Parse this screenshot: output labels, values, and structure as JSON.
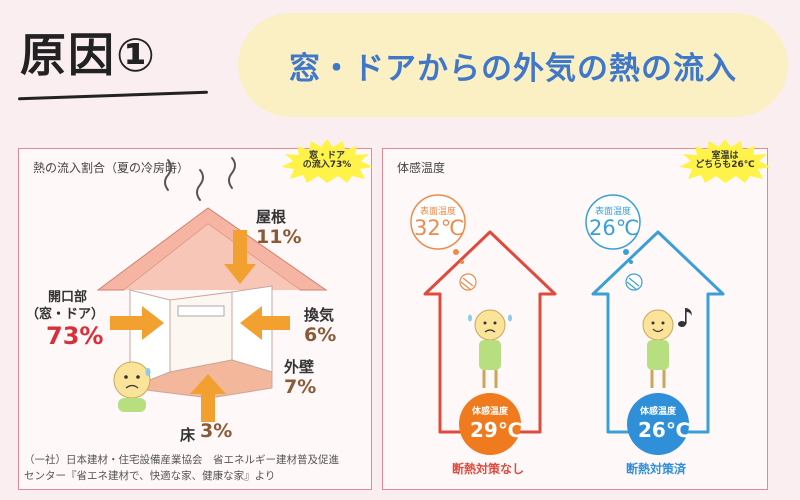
{
  "header": {
    "cause_label": "原因①",
    "title": "窓・ドアからの外気の熱の流入"
  },
  "left_panel": {
    "caption": "熱の流入割合（夏の冷房時）",
    "burst_line1": "窓・ドア",
    "burst_line2": "の流入73%",
    "roof_label": "屋根",
    "roof_pct": "11%",
    "opening_label_line1": "開口部",
    "opening_label_line2": "（窓・ドア）",
    "opening_pct": "73%",
    "vent_label": "換気",
    "vent_pct": "6%",
    "wall_label": "外壁",
    "wall_pct": "7%",
    "floor_label": "床",
    "floor_pct": "3%",
    "source_line1": "（一社）日本建材・住宅設備産業協会　省エネルギー建材普及促進",
    "source_line2": "センター『省エネ建材で、快適な家、健康な家』より"
  },
  "right_panel": {
    "caption": "体感温度",
    "burst_line1": "室温は",
    "burst_line2": "どちらも26℃",
    "left_surface_label": "表面温度",
    "left_surface_value": "32℃",
    "right_surface_label": "表面温度",
    "right_surface_value": "26℃",
    "left_feel_label": "体感温度",
    "left_feel_value": "29℃",
    "right_feel_label": "体感温度",
    "right_feel_value": "26℃",
    "left_bottom_label": "断熱対策なし",
    "right_bottom_label": "断熱対策済"
  },
  "colors": {
    "title_blue": "#3f77c9",
    "pill_yellow": "#fbf0c4",
    "panel_border": "#e08a98",
    "arrow_orange": "#f2a130",
    "red_house": "#e04a3c",
    "blue_house": "#3a9fd8",
    "orange_circle": "#f07a1e",
    "blue_circle": "#2f8fd8",
    "highlight_red": "#d8303a"
  },
  "icons": [
    "heat-wave-icon",
    "sweating-child-icon",
    "happy-child-icon",
    "music-note-icon",
    "sun-heat-icon"
  ]
}
